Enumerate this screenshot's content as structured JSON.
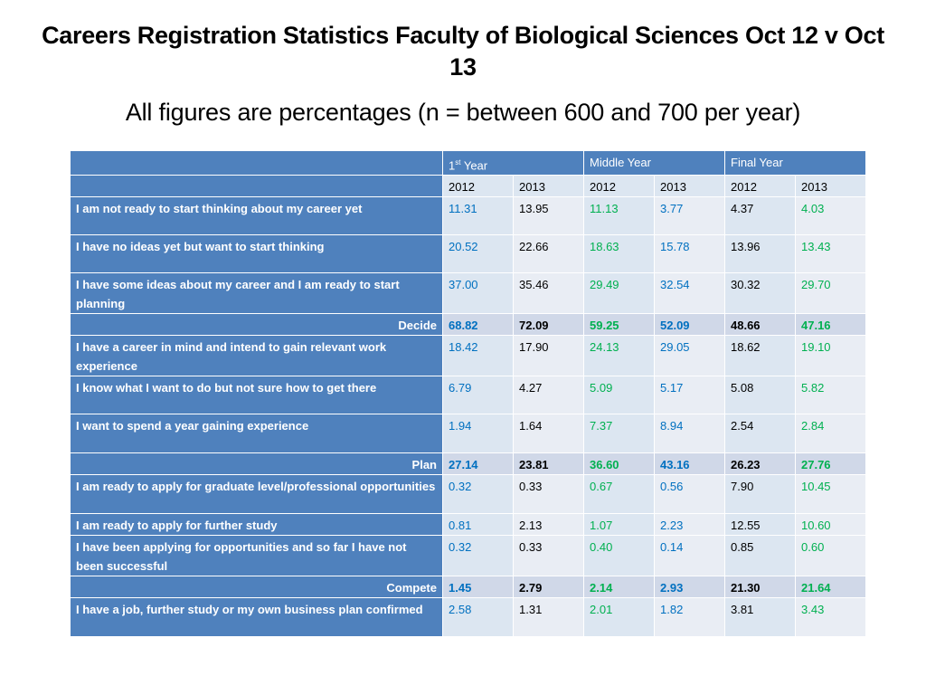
{
  "title": "Careers Registration Statistics Faculty of Biological Sciences Oct 12 v Oct 13",
  "subtitle": "All figures are percentages (n = between 600 and 700 per year)",
  "table": {
    "groups": [
      {
        "base": "1",
        "sup": "st",
        "rest": " Year"
      },
      {
        "label": "Middle Year"
      },
      {
        "label": "Final Year"
      }
    ],
    "years": [
      "2012",
      "2013",
      "2012",
      "2013",
      "2012",
      "2013"
    ],
    "rows": [
      {
        "label": "I am not ready to start thinking about my career yet",
        "values": [
          "11.31",
          "13.95",
          "11.13",
          "3.77",
          "4.37",
          "4.03"
        ]
      },
      {
        "label": "I have no ideas yet but want to start thinking",
        "values": [
          "20.52",
          "22.66",
          "18.63",
          "15.78",
          "13.96",
          "13.43"
        ]
      },
      {
        "label": "I have some ideas about my career and I am ready to start planning",
        "values": [
          "37.00",
          "35.46",
          "29.49",
          "32.54",
          "30.32",
          "29.70"
        ]
      },
      {
        "label": "Decide",
        "values": [
          "68.82",
          "72.09",
          "59.25",
          "52.09",
          "48.66",
          "47.16"
        ]
      },
      {
        "label": "I have a career in mind and intend to gain relevant work experience",
        "values": [
          "18.42",
          "17.90",
          "24.13",
          "29.05",
          "18.62",
          "19.10"
        ]
      },
      {
        "label": "I know what I want to do but not sure how to get there",
        "values": [
          "6.79",
          "4.27",
          "5.09",
          "5.17",
          "5.08",
          "5.82"
        ]
      },
      {
        "label": "I want to spend a year gaining experience",
        "values": [
          "1.94",
          "1.64",
          "7.37",
          "8.94",
          "2.54",
          "2.84"
        ]
      },
      {
        "label": "Plan",
        "values": [
          "27.14",
          "23.81",
          "36.60",
          "43.16",
          "26.23",
          "27.76"
        ]
      },
      {
        "label": "I am ready to apply for graduate level/professional opportunities",
        "values": [
          "0.32",
          "0.33",
          "0.67",
          "0.56",
          "7.90",
          "10.45"
        ]
      },
      {
        "label": "I am ready to apply for further study",
        "values": [
          "0.81",
          "2.13",
          "1.07",
          "2.23",
          "12.55",
          "10.60"
        ]
      },
      {
        "label": "I have been applying for opportunities and so far I have not been successful",
        "values": [
          "0.32",
          "0.33",
          "0.40",
          "0.14",
          "0.85",
          "0.60"
        ]
      },
      {
        "label": "Compete",
        "values": [
          "1.45",
          "2.79",
          "2.14",
          "2.93",
          "21.30",
          "21.64"
        ]
      },
      {
        "label": "I have a job, further study or my own business plan confirmed",
        "values": [
          "2.58",
          "1.31",
          "2.01",
          "1.82",
          "3.81",
          "3.43"
        ]
      }
    ]
  },
  "colors": {
    "header_blue": "#4f81bd",
    "cell_light_1": "#dce6f1",
    "cell_light_2": "#e9edf4",
    "subtotal_row": "#d0d8e8",
    "value_blue": "#0070c0",
    "value_green": "#00b050"
  }
}
